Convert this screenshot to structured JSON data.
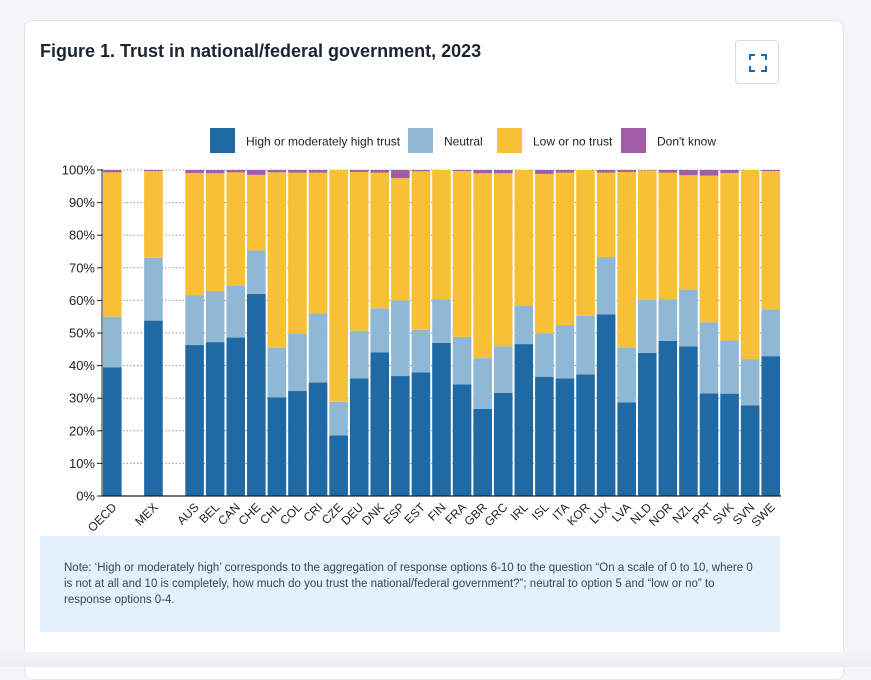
{
  "figure": {
    "title": "Figure 1. Trust in national/federal government, 2023",
    "expand_icon": "expand-icon",
    "note": "Note: ‘High or moderately high’ corresponds to the aggregation of response options 6-10 to the question “On a scale of 0 to 10, where 0 is not at all and 10 is completely, how much do you trust the national/federal government?”; neutral to option 5 and “low or no” to response options 0-4."
  },
  "chart_data": {
    "type": "bar",
    "stacked": true,
    "categories": [
      "OECD",
      "",
      "MEX",
      "",
      "AUS",
      "BEL",
      "CAN",
      "CHE",
      "CHL",
      "COL",
      "CRI",
      "CZE",
      "DEU",
      "DNK",
      "ESP",
      "EST",
      "FIN",
      "FRA",
      "GBR",
      "GRC",
      "IRL",
      "ISL",
      "ITA",
      "KOR",
      "LUX",
      "LVA",
      "NLD",
      "NOR",
      "NZL",
      "PRT",
      "SVK",
      "SVN",
      "SWE"
    ],
    "series": [
      {
        "name": "High or moderately high trust",
        "color": "#1f6aa5",
        "values": [
          39.5,
          null,
          53.8,
          null,
          46.3,
          47.2,
          48.6,
          62,
          30.3,
          32.2,
          34.8,
          18.6,
          36.1,
          44.1,
          36.8,
          37.9,
          47,
          34.2,
          26.7,
          31.6,
          46.6,
          36.6,
          36.1,
          37.3,
          55.7,
          28.7,
          43.9,
          47.6,
          45.9,
          31.5,
          31.4,
          27.8,
          42.9
        ]
      },
      {
        "name": "Neutral",
        "color": "#8fb8d5",
        "values": [
          15.5,
          null,
          19.3,
          null,
          15.2,
          15.7,
          16,
          13.3,
          15.2,
          17.5,
          21.2,
          10.3,
          14.6,
          13.5,
          23.2,
          13.1,
          13.4,
          14.6,
          15.6,
          14.3,
          11.8,
          13.3,
          16.2,
          18,
          17.6,
          16.9,
          16.2,
          12.8,
          17.3,
          21.8,
          16.3,
          14.2,
          14.3
        ]
      },
      {
        "name": "Low or no trust",
        "color": "#f8c037",
        "values": [
          44.3,
          null,
          26.6,
          null,
          37.6,
          36.1,
          34.7,
          23.2,
          53.8,
          49.5,
          43.2,
          71.1,
          48.7,
          41.6,
          37.5,
          48.6,
          39.6,
          50.9,
          56.7,
          53.1,
          41.6,
          48.9,
          46.9,
          44.7,
          25.9,
          53.8,
          39.8,
          38.8,
          35.2,
          45,
          51.4,
          58,
          42.5
        ]
      },
      {
        "name": "Don't know",
        "color": "#a15da5",
        "values": [
          0.7,
          null,
          0.3,
          null,
          0.9,
          1,
          0.7,
          1.5,
          0.7,
          0.8,
          0.8,
          0,
          0.6,
          0.8,
          2.5,
          0.4,
          0,
          0.3,
          1,
          1,
          0,
          1.2,
          0.8,
          0,
          0.8,
          0.6,
          0.1,
          0.8,
          1.6,
          1.7,
          0.9,
          0,
          0.3
        ]
      }
    ],
    "ylim": [
      0,
      100
    ],
    "yticks": [
      "0%",
      "10%",
      "20%",
      "30%",
      "40%",
      "50%",
      "60%",
      "70%",
      "80%",
      "90%",
      "100%"
    ],
    "grid": "horizontal dotted",
    "legend_position": "top",
    "title": "",
    "xlabel": "",
    "ylabel": ""
  }
}
